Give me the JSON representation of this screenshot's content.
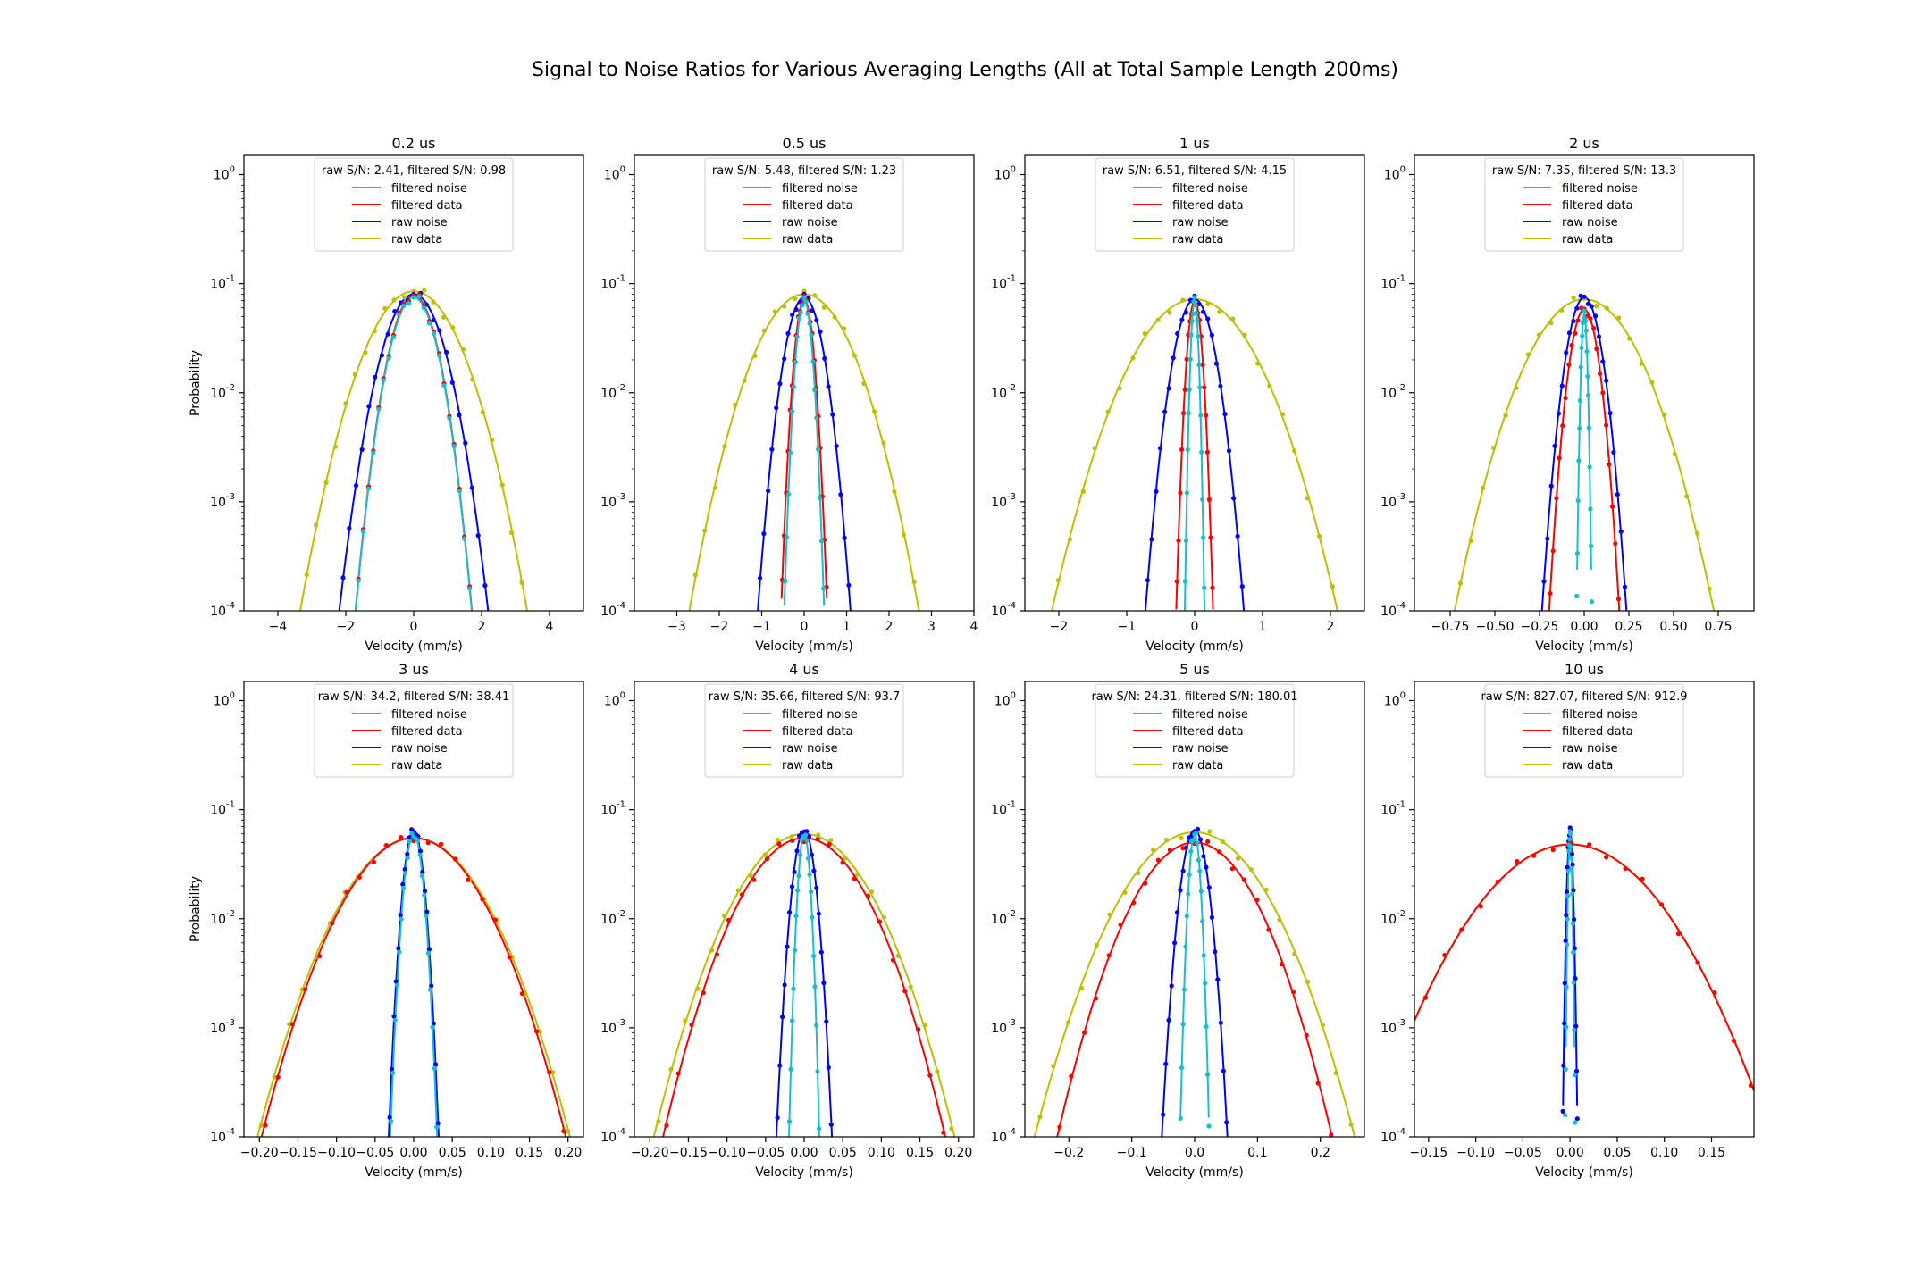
{
  "figure": {
    "title": "Signal to Noise Ratios for Various Averaging Lengths (All at Total Sample Length 200ms)"
  },
  "colors": {
    "filtered_noise": "#17becf",
    "filtered_data": "#ff0000",
    "raw_noise": "#0000ff",
    "raw_data": "#bfbf00"
  },
  "chart_data": [
    {
      "type": "line",
      "title": "0.2 us",
      "xlabel": "Velocity (mm/s)",
      "ylabel": "Probability",
      "yscale": "log",
      "ylim": [
        0.0001,
        1.5
      ],
      "xlim": [
        -5,
        5
      ],
      "xticks": [
        -4,
        -2,
        0,
        2,
        4
      ],
      "xtick_labels": [
        "−4",
        "−2",
        "0",
        "2",
        "4"
      ],
      "legend_title": "raw S/N: 2.41, filtered S/N: 0.98",
      "legend_loc": "upper center",
      "series": [
        {
          "name": "filtered noise",
          "key": "fn",
          "peak": 0.075,
          "sigma": 0.47
        },
        {
          "name": "filtered data",
          "key": "fd",
          "peak": 0.078,
          "sigma": 0.47
        },
        {
          "name": "raw noise",
          "key": "rn",
          "peak": 0.08,
          "sigma": 0.6
        },
        {
          "name": "raw data",
          "key": "rd",
          "peak": 0.085,
          "sigma": 0.91
        }
      ]
    },
    {
      "type": "line",
      "title": "0.5 us",
      "xlabel": "Velocity (mm/s)",
      "ylabel": "",
      "yscale": "log",
      "ylim": [
        0.0001,
        1.5
      ],
      "xlim": [
        -4,
        4
      ],
      "xticks": [
        -3,
        -2,
        -1,
        0,
        1,
        2,
        3,
        4
      ],
      "xtick_labels": [
        "−3",
        "−2",
        "−1",
        "0",
        "1",
        "2",
        "3",
        "4"
      ],
      "legend_title": "raw S/N: 5.48, filtered S/N: 1.23",
      "legend_loc": "upper center",
      "series": [
        {
          "name": "filtered noise",
          "key": "fn",
          "peak": 0.07,
          "sigma": 0.13
        },
        {
          "name": "filtered data",
          "key": "fd",
          "peak": 0.072,
          "sigma": 0.15
        },
        {
          "name": "raw noise",
          "key": "rn",
          "peak": 0.075,
          "sigma": 0.3
        },
        {
          "name": "raw data",
          "key": "rd",
          "peak": 0.08,
          "sigma": 0.74
        }
      ]
    },
    {
      "type": "line",
      "title": "1 us",
      "xlabel": "Velocity (mm/s)",
      "ylabel": "",
      "yscale": "log",
      "ylim": [
        0.0001,
        1.5
      ],
      "xlim": [
        -2.5,
        2.5
      ],
      "xticks": [
        -2,
        -1,
        0,
        1,
        2
      ],
      "xtick_labels": [
        "−2",
        "−1",
        "0",
        "1",
        "2"
      ],
      "legend_title": "raw S/N: 6.51, filtered S/N: 4.15",
      "legend_loc": "upper center",
      "series": [
        {
          "name": "filtered noise",
          "key": "fn",
          "peak": 0.07,
          "sigma": 0.04
        },
        {
          "name": "filtered data",
          "key": "fd",
          "peak": 0.07,
          "sigma": 0.075
        },
        {
          "name": "raw noise",
          "key": "rn",
          "peak": 0.072,
          "sigma": 0.2
        },
        {
          "name": "raw data",
          "key": "rd",
          "peak": 0.072,
          "sigma": 0.58
        }
      ]
    },
    {
      "type": "line",
      "title": "2 us",
      "xlabel": "Velocity (mm/s)",
      "ylabel": "",
      "yscale": "log",
      "ylim": [
        0.0001,
        1.5
      ],
      "xlim": [
        -0.95,
        0.95
      ],
      "xticks": [
        -0.75,
        -0.5,
        -0.25,
        0,
        0.25,
        0.5,
        0.75
      ],
      "xtick_labels": [
        "−0.75",
        "−0.50",
        "−0.25",
        "0.00",
        "0.25",
        "0.50",
        "0.75"
      ],
      "legend_title": "raw S/N: 7.35, filtered S/N: 13.3",
      "legend_loc": "upper center",
      "series": [
        {
          "name": "filtered noise",
          "key": "fn",
          "peak": 0.055,
          "sigma": 0.012
        },
        {
          "name": "filtered data",
          "key": "fd",
          "peak": 0.058,
          "sigma": 0.055
        },
        {
          "name": "raw noise",
          "key": "rn",
          "peak": 0.075,
          "sigma": 0.065
        },
        {
          "name": "raw data",
          "key": "rd",
          "peak": 0.072,
          "sigma": 0.2
        }
      ]
    },
    {
      "type": "line",
      "title": "3 us",
      "xlabel": "Velocity (mm/s)",
      "ylabel": "Probability",
      "yscale": "log",
      "ylim": [
        0.0001,
        1.5
      ],
      "xlim": [
        -0.22,
        0.22
      ],
      "xticks": [
        -0.2,
        -0.15,
        -0.1,
        -0.05,
        0,
        0.05,
        0.1,
        0.15,
        0.2
      ],
      "xtick_labels": [
        "−0.20",
        "−0.15",
        "−0.10",
        "−0.05",
        "0.00",
        "0.05",
        "0.10",
        "0.15",
        "0.20"
      ],
      "legend_title": "raw S/N: 34.2, filtered S/N: 38.41",
      "legend_loc": "upper center",
      "series": [
        {
          "name": "filtered noise",
          "key": "fn",
          "peak": 0.06,
          "sigma": 0.0085
        },
        {
          "name": "filtered data",
          "key": "fd",
          "peak": 0.055,
          "sigma": 0.0555
        },
        {
          "name": "raw noise",
          "key": "rn",
          "peak": 0.065,
          "sigma": 0.009
        },
        {
          "name": "raw data",
          "key": "rd",
          "peak": 0.055,
          "sigma": 0.057
        }
      ]
    },
    {
      "type": "line",
      "title": "4 us",
      "xlabel": "Velocity (mm/s)",
      "ylabel": "",
      "yscale": "log",
      "ylim": [
        0.0001,
        1.5
      ],
      "xlim": [
        -0.22,
        0.22
      ],
      "xticks": [
        -0.2,
        -0.15,
        -0.1,
        -0.05,
        0,
        0.05,
        0.1,
        0.15,
        0.2
      ],
      "xtick_labels": [
        "−0.20",
        "−0.15",
        "−0.10",
        "−0.05",
        "0.00",
        "0.05",
        "0.10",
        "0.15",
        "0.20"
      ],
      "legend_title": "raw S/N: 35.66, filtered S/N: 93.7",
      "legend_loc": "upper center",
      "series": [
        {
          "name": "filtered noise",
          "key": "fn",
          "peak": 0.06,
          "sigma": 0.0055
        },
        {
          "name": "filtered data",
          "key": "fd",
          "peak": 0.055,
          "sigma": 0.0515
        },
        {
          "name": "raw noise",
          "key": "rn",
          "peak": 0.065,
          "sigma": 0.01
        },
        {
          "name": "raw data",
          "key": "rd",
          "peak": 0.06,
          "sigma": 0.0545
        }
      ]
    },
    {
      "type": "line",
      "title": "5 us",
      "xlabel": "Velocity (mm/s)",
      "ylabel": "",
      "yscale": "log",
      "ylim": [
        0.0001,
        1.5
      ],
      "xlim": [
        -0.27,
        0.27
      ],
      "xticks": [
        -0.2,
        -0.1,
        0,
        0.1,
        0.2
      ],
      "xtick_labels": [
        "−0.2",
        "−0.1",
        "0.0",
        "0.1",
        "0.2"
      ],
      "legend_title": "raw S/N: 24.31, filtered S/N: 180.01",
      "legend_loc": "upper center",
      "series": [
        {
          "name": "filtered noise",
          "key": "fn",
          "peak": 0.06,
          "sigma": 0.0065
        },
        {
          "name": "filtered data",
          "key": "fd",
          "peak": 0.05,
          "sigma": 0.062
        },
        {
          "name": "raw noise",
          "key": "rn",
          "peak": 0.065,
          "sigma": 0.0145
        },
        {
          "name": "raw data",
          "key": "rd",
          "peak": 0.062,
          "sigma": 0.071
        }
      ]
    },
    {
      "type": "line",
      "title": "10 us",
      "xlabel": "Velocity (mm/s)",
      "ylabel": "",
      "yscale": "log",
      "ylim": [
        0.0001,
        1.5
      ],
      "xlim": [
        -0.165,
        0.195
      ],
      "xticks": [
        -0.15,
        -0.1,
        -0.05,
        0,
        0.05,
        0.1,
        0.15
      ],
      "xtick_labels": [
        "−0.15",
        "−0.10",
        "−0.05",
        "0.00",
        "0.05",
        "0.10",
        "0.15"
      ],
      "legend_title": "raw S/N: 827.07, filtered S/N: 912.9",
      "legend_loc": "upper center",
      "series": [
        {
          "name": "filtered noise",
          "key": "fn",
          "peak": 0.06,
          "sigma": 0.0015
        },
        {
          "name": "filtered data",
          "key": "fd",
          "peak": 0.048,
          "sigma": 0.0605
        },
        {
          "name": "raw noise",
          "key": "rn",
          "peak": 0.065,
          "sigma": 0.0022
        },
        {
          "name": "raw data",
          "key": "rd",
          "peak": 0.048,
          "sigma": 0.0605
        }
      ]
    }
  ]
}
